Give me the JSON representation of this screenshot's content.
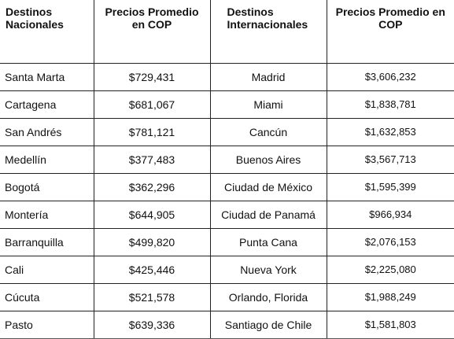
{
  "table": {
    "headers": [
      [
        "Destinos",
        "Nacionales"
      ],
      [
        "Precios Promedio",
        "en COP"
      ],
      [
        "Destinos",
        "Internacionales"
      ],
      [
        "Precios Promedio en",
        "COP"
      ]
    ],
    "rows": [
      [
        "Santa Marta",
        "$729,431",
        "Madrid",
        "$3,606,232"
      ],
      [
        "Cartagena",
        "$681,067",
        "Miami",
        "$1,838,781"
      ],
      [
        "San Andrés",
        "$781,121",
        "Cancún",
        "$1,632,853"
      ],
      [
        "Medellín",
        "$377,483",
        "Buenos Aires",
        "$3,567,713"
      ],
      [
        "Bogotá",
        "$362,296",
        "Ciudad de México",
        "$1,595,399"
      ],
      [
        "Montería",
        "$644,905",
        "Ciudad de Panamá",
        "$966,934"
      ],
      [
        "Barranquilla",
        "$499,820",
        "Punta Cana",
        "$2,076,153"
      ],
      [
        "Cali",
        "$425,446",
        "Nueva York",
        "$2,225,080"
      ],
      [
        "Cúcuta",
        "$521,578",
        "Orlando, Florida",
        "$1,988,249"
      ],
      [
        "Pasto",
        "$639,336",
        "Santiago de Chile",
        "$1,581,803"
      ]
    ]
  }
}
